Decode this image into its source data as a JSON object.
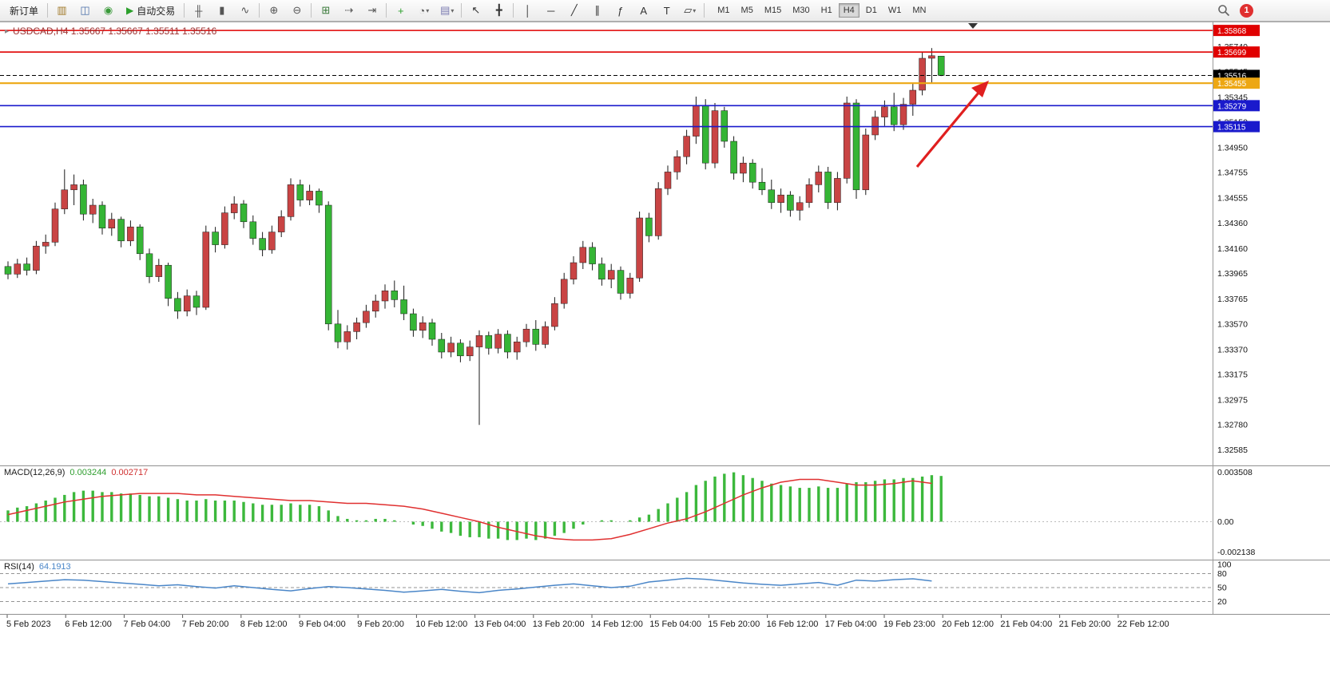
{
  "toolbar": {
    "new_order_label": "新订单",
    "auto_trading_label": "自动交易",
    "items": [
      {
        "type": "button",
        "name": "new-order-button",
        "label": "新订单"
      },
      {
        "type": "sep"
      },
      {
        "type": "icon",
        "name": "new-chart-icon",
        "glyph": "▥",
        "color": "#a07828"
      },
      {
        "type": "icon",
        "name": "profiles-icon",
        "glyph": "◫",
        "color": "#4a6ea8"
      },
      {
        "type": "icon",
        "name": "market-watch-icon",
        "glyph": "◉",
        "color": "#3a9a3a"
      },
      {
        "type": "button-icon",
        "name": "auto-trading-button",
        "glyph": "▶",
        "glyph_color": "#2ca02c",
        "label": "自动交易"
      },
      {
        "type": "sep"
      },
      {
        "type": "icon",
        "name": "bar-chart-icon",
        "glyph": "╫",
        "color": "#555555"
      },
      {
        "type": "icon",
        "name": "candlestick-chart-icon",
        "glyph": "▮",
        "color": "#555555"
      },
      {
        "type": "icon",
        "name": "line-chart-icon",
        "glyph": "∿",
        "color": "#555555"
      },
      {
        "type": "sep"
      },
      {
        "type": "icon",
        "name": "zoom-in-icon",
        "glyph": "⊕",
        "color": "#555555"
      },
      {
        "type": "icon",
        "name": "zoom-out-icon",
        "glyph": "⊖",
        "color": "#555555"
      },
      {
        "type": "sep"
      },
      {
        "type": "icon",
        "name": "tile-windows-icon",
        "glyph": "⊞",
        "color": "#3a7a3a"
      },
      {
        "type": "icon",
        "name": "auto-scroll-icon",
        "glyph": "⇢",
        "color": "#555555"
      },
      {
        "type": "icon",
        "name": "chart-shift-icon",
        "glyph": "⇥",
        "color": "#555555"
      },
      {
        "type": "sep"
      },
      {
        "type": "icon",
        "name": "indicators-icon",
        "glyph": "+",
        "color": "#2ca02c"
      },
      {
        "type": "icon",
        "name": "periods-icon",
        "glyph": "◔",
        "color": "#555555",
        "dropdown": true
      },
      {
        "type": "icon",
        "name": "templates-icon",
        "glyph": "▤",
        "color": "#7a7ab0",
        "dropdown": true
      },
      {
        "type": "sep"
      },
      {
        "type": "icon",
        "name": "cursor-icon",
        "glyph": "↖",
        "color": "#333333"
      },
      {
        "type": "icon",
        "name": "crosshair-icon",
        "glyph": "╋",
        "color": "#333333"
      },
      {
        "type": "sep"
      },
      {
        "type": "icon",
        "name": "vertical-line-icon",
        "glyph": "│",
        "color": "#333333"
      },
      {
        "type": "icon",
        "name": "horizontal-line-icon",
        "glyph": "─",
        "color": "#333333"
      },
      {
        "type": "icon",
        "name": "trendline-icon",
        "glyph": "╱",
        "color": "#333333"
      },
      {
        "type": "icon",
        "name": "channel-icon",
        "glyph": "∥",
        "color": "#333333"
      },
      {
        "type": "icon",
        "name": "fibonacci-icon",
        "glyph": "ƒ",
        "color": "#333333"
      },
      {
        "type": "icon",
        "name": "text-icon",
        "glyph": "A",
        "color": "#333333"
      },
      {
        "type": "icon",
        "name": "label-icon",
        "glyph": "T",
        "color": "#333333"
      },
      {
        "type": "icon",
        "name": "shapes-icon",
        "glyph": "▱",
        "color": "#333333",
        "dropdown": true
      },
      {
        "type": "sep"
      }
    ],
    "timeframes": [
      "M1",
      "M5",
      "M15",
      "M30",
      "H1",
      "H4",
      "D1",
      "W1",
      "MN"
    ],
    "active_timeframe": "H4",
    "notification_count": "1",
    "notification_color": "#e03030"
  },
  "chart_data": {
    "type": "candlestick",
    "symbol": "USDCAD",
    "timeframe": "H4",
    "title": "USDCAD,H4  1.35667 1.35667 1.35511 1.35516",
    "ohlc_current": {
      "open": "1.35667",
      "high": "1.35667",
      "low": "1.35511",
      "close": "1.35516"
    },
    "y_min": 1.325,
    "y_max": 1.359,
    "up_color": "#c94444",
    "down_color": "#35b535",
    "price_axis_labels": [
      "1.35740",
      "1.35545",
      "1.35345",
      "1.35150",
      "1.34950",
      "1.34755",
      "1.34555",
      "1.34360",
      "1.34160",
      "1.33965",
      "1.33765",
      "1.33570",
      "1.33370",
      "1.33175",
      "1.32975",
      "1.32780",
      "1.32585"
    ],
    "hlines": [
      {
        "price": 1.35868,
        "label": "1.35868",
        "color": "#e00000",
        "style": "solid",
        "width": 1.4
      },
      {
        "price": 1.35699,
        "label": "1.35699",
        "color": "#e00000",
        "style": "solid",
        "width": 1.6
      },
      {
        "price": 1.35516,
        "label": "1.35516",
        "color": "#000000",
        "style": "dash",
        "width": 1
      },
      {
        "price": 1.35455,
        "label": "1.35455",
        "color": "#eda713",
        "style": "solid",
        "width": 2.2
      },
      {
        "price": 1.35279,
        "label": "1.35279",
        "color": "#1a1acc",
        "style": "solid",
        "width": 1.6
      },
      {
        "price": 1.35115,
        "label": "1.35115",
        "color": "#1a1acc",
        "style": "solid",
        "width": 1.6
      }
    ],
    "candles": [
      [
        1.3402,
        1.3406,
        1.3392,
        1.3396
      ],
      [
        1.3396,
        1.3408,
        1.3393,
        1.3404
      ],
      [
        1.3404,
        1.3409,
        1.3395,
        1.3399
      ],
      [
        1.3399,
        1.3422,
        1.3396,
        1.3418
      ],
      [
        1.3418,
        1.3427,
        1.3412,
        1.3421
      ],
      [
        1.3421,
        1.3452,
        1.3418,
        1.3447
      ],
      [
        1.3447,
        1.3478,
        1.3443,
        1.3462
      ],
      [
        1.3462,
        1.3474,
        1.345,
        1.3466
      ],
      [
        1.3466,
        1.347,
        1.3438,
        1.3443
      ],
      [
        1.3443,
        1.3455,
        1.3436,
        1.345
      ],
      [
        1.345,
        1.3453,
        1.3427,
        1.3432
      ],
      [
        1.3432,
        1.3444,
        1.3426,
        1.3439
      ],
      [
        1.3439,
        1.3441,
        1.3417,
        1.3422
      ],
      [
        1.3422,
        1.3438,
        1.3418,
        1.3433
      ],
      [
        1.3433,
        1.3435,
        1.3407,
        1.3412
      ],
      [
        1.3412,
        1.3416,
        1.3389,
        1.3394
      ],
      [
        1.3394,
        1.3408,
        1.339,
        1.3403
      ],
      [
        1.3403,
        1.3405,
        1.3371,
        1.3377
      ],
      [
        1.3377,
        1.3382,
        1.3361,
        1.3367
      ],
      [
        1.3367,
        1.3384,
        1.3363,
        1.3379
      ],
      [
        1.3379,
        1.3383,
        1.3364,
        1.337
      ],
      [
        1.337,
        1.3434,
        1.3368,
        1.3429
      ],
      [
        1.3429,
        1.3433,
        1.3413,
        1.3419
      ],
      [
        1.3419,
        1.3449,
        1.3416,
        1.3444
      ],
      [
        1.3444,
        1.3457,
        1.3439,
        1.3451
      ],
      [
        1.3451,
        1.3454,
        1.3432,
        1.3437
      ],
      [
        1.3437,
        1.3442,
        1.3419,
        1.3424
      ],
      [
        1.3424,
        1.3429,
        1.341,
        1.3415
      ],
      [
        1.3415,
        1.3434,
        1.3412,
        1.3429
      ],
      [
        1.3429,
        1.3446,
        1.3425,
        1.3441
      ],
      [
        1.3441,
        1.3471,
        1.3438,
        1.3466
      ],
      [
        1.3466,
        1.347,
        1.3449,
        1.3454
      ],
      [
        1.3454,
        1.3466,
        1.345,
        1.3461
      ],
      [
        1.3461,
        1.3463,
        1.3444,
        1.345
      ],
      [
        1.345,
        1.3453,
        1.3352,
        1.3357
      ],
      [
        1.3357,
        1.3368,
        1.3338,
        1.3343
      ],
      [
        1.3343,
        1.3356,
        1.3337,
        1.3351
      ],
      [
        1.3351,
        1.3362,
        1.3345,
        1.3358
      ],
      [
        1.3358,
        1.3372,
        1.3354,
        1.3367
      ],
      [
        1.3367,
        1.338,
        1.3362,
        1.3375
      ],
      [
        1.3375,
        1.3388,
        1.3369,
        1.3383
      ],
      [
        1.3383,
        1.3391,
        1.337,
        1.3376
      ],
      [
        1.3376,
        1.3387,
        1.336,
        1.3365
      ],
      [
        1.3365,
        1.3369,
        1.3347,
        1.3352
      ],
      [
        1.3352,
        1.3363,
        1.3346,
        1.3358
      ],
      [
        1.3358,
        1.3361,
        1.334,
        1.3345
      ],
      [
        1.3345,
        1.335,
        1.333,
        1.3335
      ],
      [
        1.3335,
        1.3347,
        1.3331,
        1.3342
      ],
      [
        1.3342,
        1.3345,
        1.3327,
        1.3332
      ],
      [
        1.3332,
        1.3344,
        1.3328,
        1.3339
      ],
      [
        1.3339,
        1.3352,
        1.3278,
        1.3348
      ],
      [
        1.3348,
        1.3351,
        1.3333,
        1.3338
      ],
      [
        1.3338,
        1.3353,
        1.3334,
        1.3349
      ],
      [
        1.3349,
        1.3352,
        1.333,
        1.3335
      ],
      [
        1.3335,
        1.3347,
        1.3329,
        1.3343
      ],
      [
        1.3343,
        1.3357,
        1.3339,
        1.3353
      ],
      [
        1.3353,
        1.336,
        1.3336,
        1.3341
      ],
      [
        1.3341,
        1.3359,
        1.3338,
        1.3355
      ],
      [
        1.3355,
        1.3378,
        1.3352,
        1.3373
      ],
      [
        1.3373,
        1.3397,
        1.3369,
        1.3392
      ],
      [
        1.3392,
        1.341,
        1.3388,
        1.3405
      ],
      [
        1.3405,
        1.3422,
        1.34,
        1.3417
      ],
      [
        1.3417,
        1.3421,
        1.3399,
        1.3404
      ],
      [
        1.3404,
        1.3409,
        1.3387,
        1.3392
      ],
      [
        1.3392,
        1.3404,
        1.3385,
        1.3399
      ],
      [
        1.3399,
        1.3402,
        1.3376,
        1.3381
      ],
      [
        1.3381,
        1.3397,
        1.3377,
        1.3393
      ],
      [
        1.3393,
        1.3445,
        1.339,
        1.344
      ],
      [
        1.344,
        1.3444,
        1.3421,
        1.3426
      ],
      [
        1.3426,
        1.3468,
        1.3423,
        1.3463
      ],
      [
        1.3463,
        1.3481,
        1.3458,
        1.3476
      ],
      [
        1.3476,
        1.3493,
        1.347,
        1.3488
      ],
      [
        1.3488,
        1.3509,
        1.3482,
        1.3504
      ],
      [
        1.3504,
        1.3535,
        1.3498,
        1.3528
      ],
      [
        1.3528,
        1.3533,
        1.3478,
        1.3483
      ],
      [
        1.3483,
        1.353,
        1.3479,
        1.3524
      ],
      [
        1.3524,
        1.3527,
        1.3495,
        1.35
      ],
      [
        1.35,
        1.3504,
        1.347,
        1.3475
      ],
      [
        1.3475,
        1.3488,
        1.3468,
        1.3483
      ],
      [
        1.3483,
        1.3486,
        1.3463,
        1.3468
      ],
      [
        1.3468,
        1.3479,
        1.3458,
        1.3462
      ],
      [
        1.3462,
        1.347,
        1.3447,
        1.3452
      ],
      [
        1.3452,
        1.3463,
        1.3444,
        1.3458
      ],
      [
        1.3458,
        1.3461,
        1.3441,
        1.3446
      ],
      [
        1.3446,
        1.3457,
        1.3438,
        1.3452
      ],
      [
        1.3452,
        1.3471,
        1.3448,
        1.3466
      ],
      [
        1.3466,
        1.3481,
        1.346,
        1.3476
      ],
      [
        1.3476,
        1.348,
        1.3447,
        1.3452
      ],
      [
        1.3452,
        1.3476,
        1.3446,
        1.3471
      ],
      [
        1.3471,
        1.3535,
        1.3467,
        1.353
      ],
      [
        1.353,
        1.3533,
        1.3455,
        1.3462
      ],
      [
        1.3462,
        1.351,
        1.3458,
        1.3505
      ],
      [
        1.3505,
        1.3524,
        1.3501,
        1.3519
      ],
      [
        1.3519,
        1.3532,
        1.3512,
        1.3527
      ],
      [
        1.3527,
        1.3538,
        1.3508,
        1.3513
      ],
      [
        1.3513,
        1.3534,
        1.3509,
        1.3529
      ],
      [
        1.3529,
        1.3545,
        1.352,
        1.354
      ],
      [
        1.354,
        1.357,
        1.3536,
        1.3565
      ],
      [
        1.3565,
        1.3573,
        1.3546,
        1.3567
      ],
      [
        1.35667,
        1.35667,
        1.35511,
        1.35516
      ]
    ],
    "time_axis_labels": [
      "5 Feb 2023",
      "6 Feb 12:00",
      "7 Feb 04:00",
      "7 Feb 20:00",
      "8 Feb 12:00",
      "9 Feb 04:00",
      "9 Feb 20:00",
      "10 Feb 12:00",
      "13 Feb 04:00",
      "13 Feb 20:00",
      "14 Feb 12:00",
      "15 Feb 04:00",
      "15 Feb 20:00",
      "16 Feb 12:00",
      "17 Feb 04:00",
      "19 Feb 23:00",
      "20 Feb 12:00",
      "21 Feb 04:00",
      "21 Feb 20:00",
      "22 Feb 12:00"
    ],
    "macd": {
      "label": "MACD(12,26,9)",
      "value_main": "0.003244",
      "value_signal": "0.002717",
      "axis_labels": [
        "0.003508",
        "0.00",
        "-0.002138"
      ],
      "axis_values": [
        0.003508,
        0,
        -0.002138
      ],
      "y_min": -0.00235,
      "y_max": 0.00365,
      "hist_color": "#3cb83c",
      "signal_color": "#e03030",
      "histogram": [
        0.0008,
        0.001,
        0.0011,
        0.0013,
        0.0015,
        0.0017,
        0.0019,
        0.0021,
        0.0022,
        0.0022,
        0.0021,
        0.0021,
        0.002,
        0.002,
        0.0019,
        0.0018,
        0.0018,
        0.0017,
        0.0016,
        0.0015,
        0.0015,
        0.0016,
        0.0015,
        0.0015,
        0.0015,
        0.0014,
        0.0013,
        0.0012,
        0.0012,
        0.0012,
        0.0013,
        0.0012,
        0.0012,
        0.0011,
        0.0008,
        0.0004,
        0.0002,
        0.0001,
        0.0001,
        0.0002,
        0.0002,
        0.0001,
        0.0,
        -0.0002,
        -0.0003,
        -0.0005,
        -0.0007,
        -0.0008,
        -0.001,
        -0.0011,
        -0.0011,
        -0.0012,
        -0.0012,
        -0.0013,
        -0.0013,
        -0.0012,
        -0.0013,
        -0.0012,
        -0.001,
        -0.0008,
        -0.0005,
        -0.0002,
        0.0,
        0.0001,
        0.0001,
        0.0,
        0.0001,
        0.0003,
        0.0005,
        0.0009,
        0.0013,
        0.0017,
        0.0021,
        0.0026,
        0.0029,
        0.0032,
        0.0034,
        0.0035,
        0.0033,
        0.0031,
        0.0029,
        0.0027,
        0.0026,
        0.0025,
        0.0024,
        0.0024,
        0.0025,
        0.0024,
        0.0024,
        0.0027,
        0.0028,
        0.0028,
        0.0029,
        0.003,
        0.003,
        0.0031,
        0.0031,
        0.0032,
        0.0033,
        0.003244
      ],
      "signal": [
        0.0005,
        0.0008,
        0.0011,
        0.0014,
        0.0016,
        0.0018,
        0.0019,
        0.002,
        0.002,
        0.002,
        0.0019,
        0.0019,
        0.0018,
        0.0017,
        0.0016,
        0.0015,
        0.0015,
        0.0014,
        0.0013,
        0.0013,
        0.0012,
        0.0011,
        0.0009,
        0.0006,
        0.0003,
        0.0,
        -0.0004,
        -0.0007,
        -0.001,
        -0.0012,
        -0.0013,
        -0.0013,
        -0.0012,
        -0.0009,
        -0.0005,
        -0.0001,
        0.0002,
        0.0007,
        0.0013,
        0.0019,
        0.0024,
        0.0028,
        0.003,
        0.003,
        0.0028,
        0.0026,
        0.0026,
        0.0027,
        0.0029,
        0.002717
      ]
    },
    "rsi": {
      "label": "RSI(14)",
      "value": "64.1913",
      "axis_labels": [
        "100",
        "80",
        "50",
        "20"
      ],
      "levels": [
        80,
        50,
        20
      ],
      "line_color": "#4a86c8",
      "points": [
        58,
        61,
        64,
        67,
        66,
        63,
        60,
        57,
        54,
        56,
        52,
        49,
        54,
        50,
        46,
        43,
        48,
        52,
        50,
        47,
        44,
        40,
        43,
        46,
        42,
        39,
        44,
        47,
        51,
        55,
        58,
        54,
        50,
        53,
        62,
        66,
        70,
        68,
        64,
        60,
        57,
        55,
        58,
        61,
        55,
        66,
        64,
        67,
        69,
        64.19
      ]
    }
  }
}
